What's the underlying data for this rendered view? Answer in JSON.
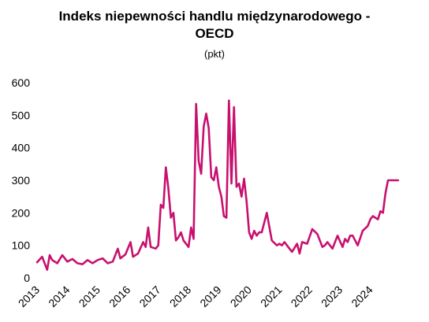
{
  "chart_data": {
    "type": "line",
    "title_line1": "Indeks niepewności handlu międzynarodowego -",
    "title_line2": "OECD",
    "subtitle": "(pkt)",
    "xlabel": "",
    "ylabel": "",
    "ylim": [
      0,
      600
    ],
    "y_ticks": [
      "0",
      "100",
      "200",
      "300",
      "400",
      "500",
      "600"
    ],
    "x_tick_labels": [
      "2013",
      "2014",
      "2015",
      "2016",
      "2017",
      "2018",
      "2019",
      "2020",
      "2021",
      "2022",
      "2023",
      "2024"
    ],
    "grid": false,
    "legend": "none",
    "series_color": "#C8106E",
    "series": [
      {
        "x": [
          "2013-01",
          "2013-03",
          "2013-05",
          "2013-06",
          "2013-07",
          "2013-09",
          "2013-11",
          "2014-01",
          "2014-03",
          "2014-05",
          "2014-07",
          "2014-09",
          "2014-11",
          "2015-01",
          "2015-03",
          "2015-05",
          "2015-07",
          "2015-09",
          "2015-10",
          "2015-12",
          "2016-02",
          "2016-03",
          "2016-04",
          "2016-05",
          "2016-07",
          "2016-08",
          "2016-09",
          "2016-10",
          "2016-12",
          "2017-01",
          "2017-02",
          "2017-03",
          "2017-04",
          "2017-05",
          "2017-06",
          "2017-07",
          "2017-08",
          "2017-09",
          "2017-10",
          "2017-11",
          "2018-01",
          "2018-02",
          "2018-03",
          "2018-04",
          "2018-05",
          "2018-06",
          "2018-07",
          "2018-08",
          "2018-09",
          "2018-10",
          "2018-11",
          "2018-12",
          "2019-01",
          "2019-02",
          "2019-03",
          "2019-04",
          "2019-05",
          "2019-06",
          "2019-07",
          "2019-08",
          "2019-09",
          "2019-10",
          "2019-11",
          "2019-12",
          "2020-01",
          "2020-02",
          "2020-03",
          "2020-04",
          "2020-05",
          "2020-06",
          "2020-08",
          "2020-10",
          "2020-12",
          "2021-01",
          "2021-02",
          "2021-03",
          "2021-04",
          "2021-06",
          "2021-08",
          "2021-09",
          "2021-10",
          "2021-12",
          "2022-02",
          "2022-04",
          "2022-06",
          "2022-07",
          "2022-08",
          "2022-10",
          "2022-12",
          "2023-02",
          "2023-03",
          "2023-04",
          "2023-05",
          "2023-06",
          "2023-08",
          "2023-10",
          "2023-12",
          "2024-01",
          "2024-02",
          "2024-04",
          "2024-05",
          "2024-06",
          "2024-07",
          "2024-08",
          "2024-09",
          "2024-10",
          "2024-11",
          "2024-12"
        ],
        "values": [
          48,
          65,
          25,
          70,
          55,
          45,
          70,
          50,
          58,
          45,
          42,
          55,
          45,
          55,
          60,
          45,
          50,
          90,
          60,
          72,
          110,
          65,
          70,
          75,
          110,
          95,
          155,
          95,
          90,
          100,
          225,
          215,
          340,
          275,
          185,
          200,
          115,
          125,
          140,
          115,
          95,
          155,
          120,
          535,
          360,
          320,
          465,
          505,
          460,
          310,
          300,
          340,
          280,
          250,
          190,
          185,
          545,
          290,
          525,
          280,
          290,
          250,
          305,
          235,
          140,
          120,
          145,
          130,
          140,
          140,
          200,
          115,
          100,
          105,
          100,
          110,
          100,
          80,
          105,
          75,
          110,
          105,
          150,
          135,
          95,
          100,
          110,
          90,
          130,
          95,
          120,
          110,
          130,
          130,
          100,
          145,
          160,
          180,
          190,
          180,
          205,
          200,
          260,
          300,
          300,
          300,
          300,
          300
        ]
      }
    ]
  }
}
